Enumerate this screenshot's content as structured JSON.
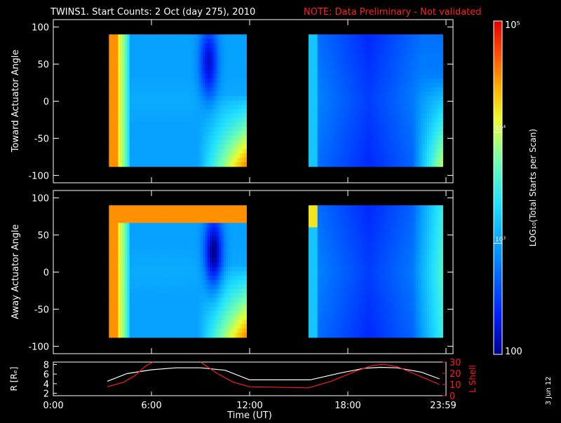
{
  "title": {
    "main": "TWINS1. Start Counts:  2 Oct (day 275), 2010",
    "note": "NOTE: Data Preliminary - Not validated",
    "note_color": "#ff2020"
  },
  "datestamp": "3 Jun 12",
  "colorbar": {
    "label": "LOG₁₀(Total Starts per Scan)",
    "tick_labels": [
      "10⁵",
      "10⁴",
      "10³",
      "100"
    ],
    "tick_values": [
      100000,
      10000,
      1000,
      100
    ],
    "range": [
      100,
      100000
    ],
    "scale": "log",
    "colormap": "rainbow"
  },
  "chart_data": [
    {
      "type": "heatmap",
      "ylabel": "Toward Actuator Angle",
      "xlim": [
        0,
        24
      ],
      "ylim": [
        -110,
        110
      ],
      "y_ticks": [
        -100,
        -50,
        0,
        50,
        100
      ],
      "x_ticks": [
        "0:00",
        "6:00",
        "12:00",
        "18:00",
        "23:59"
      ],
      "data_blocks": [
        {
          "t_start": 3.4,
          "t_end": 11.8,
          "angle_min": -88,
          "angle_max": 90
        },
        {
          "t_start": 15.6,
          "t_end": 23.8,
          "angle_min": -88,
          "angle_max": 90
        }
      ],
      "features": [
        {
          "name": "high-count edge",
          "t": 3.5,
          "level_log10": 4.6
        },
        {
          "name": "depletion",
          "t": 9.5,
          "level_log10": 2.2
        }
      ]
    },
    {
      "type": "heatmap",
      "ylabel": "Away Actuator Angle",
      "xlim": [
        0,
        24
      ],
      "ylim": [
        -110,
        110
      ],
      "y_ticks": [
        -100,
        -50,
        0,
        50,
        100
      ],
      "x_ticks": [
        "0:00",
        "6:00",
        "12:00",
        "18:00",
        "23:59"
      ],
      "data_blocks": [
        {
          "t_start": 3.4,
          "t_end": 11.8,
          "angle_min": -88,
          "angle_max": 90
        },
        {
          "t_start": 15.6,
          "t_end": 23.8,
          "angle_min": -88,
          "angle_max": 90
        }
      ],
      "features": [
        {
          "name": "high-count edge",
          "t": 3.5,
          "level_log10": 4.6
        },
        {
          "name": "depletion",
          "t": 9.8,
          "level_log10": 2.0
        }
      ]
    },
    {
      "type": "line",
      "xlabel": "Time (UT)",
      "x_ticks": [
        "0:00",
        "6:00",
        "12:00",
        "18:00",
        "23:59"
      ],
      "xlim": [
        0,
        24
      ],
      "ylabel_left": "R [Rₑ]",
      "ylim_left": [
        1.5,
        8.5
      ],
      "y_ticks_left": [
        2,
        4,
        6,
        8
      ],
      "ylabel_right": "L Shell",
      "ylim_right": [
        0,
        30
      ],
      "y_ticks_right": [
        0,
        10,
        20,
        30
      ],
      "series": [
        {
          "color": "#ffffff",
          "axis": "left",
          "x": [
            3.3,
            4.5,
            6.0,
            7.5,
            9.0,
            10.5,
            12.0,
            14.0,
            15.7,
            17.5,
            19.0,
            20.0,
            21.0,
            22.5,
            23.6
          ],
          "y": [
            4.5,
            6.1,
            6.9,
            7.3,
            7.3,
            6.8,
            4.8,
            4.8,
            4.8,
            6.2,
            7.2,
            7.4,
            7.3,
            6.4,
            5.0
          ]
        },
        {
          "color": "#ff1a1a",
          "axis": "right",
          "x": [
            3.3,
            4.3,
            5.0,
            5.6,
            6.1
          ],
          "y": [
            8,
            12,
            18,
            26,
            32
          ]
        },
        {
          "color": "#ff1a1a",
          "axis": "right",
          "x": [
            9.0,
            10.0,
            11.0,
            12.0,
            15.6,
            17.0,
            18.5,
            19.5,
            20.2,
            21.0,
            22.0,
            23.6
          ],
          "y": [
            32,
            20,
            12,
            8,
            7,
            13,
            22,
            27,
            28,
            26,
            20,
            10
          ]
        }
      ]
    }
  ]
}
